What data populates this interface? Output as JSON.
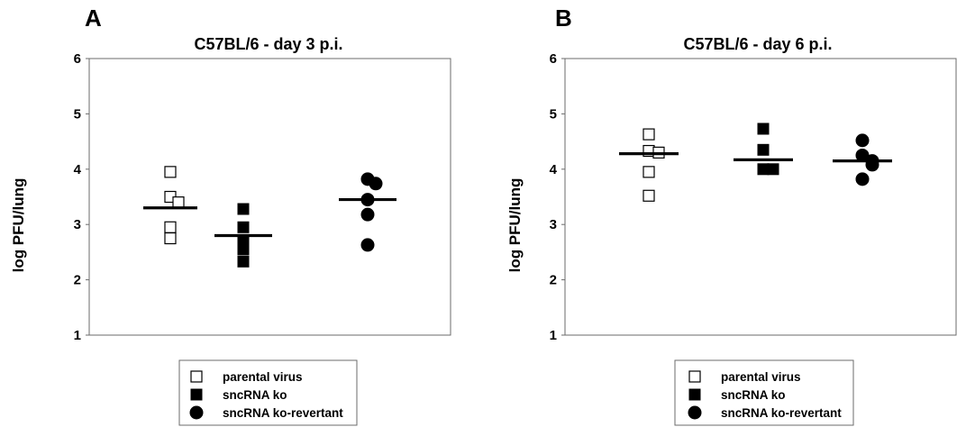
{
  "chart_data": [
    {
      "type": "scatter",
      "panel_label": "A",
      "title": "C57BL/6 - day 3 p.i.",
      "xlabel": "",
      "ylabel": "log PFU/lung",
      "ylim": [
        1,
        6
      ],
      "yticks": [
        "1",
        "2",
        "3",
        "4",
        "5",
        "6"
      ],
      "grid": false,
      "legend_placement": "bottom",
      "groups": [
        {
          "name": "parental virus",
          "marker": "open-square",
          "color": "#000000",
          "values": [
            3.95,
            3.5,
            3.4,
            2.95,
            2.75
          ],
          "mean": 3.3
        },
        {
          "name": "sncRNA ko",
          "marker": "filled-square",
          "color": "#000000",
          "values": [
            3.28,
            2.95,
            2.72,
            2.55,
            2.33
          ],
          "mean": 2.8
        },
        {
          "name": "sncRNA ko-revertant",
          "marker": "filled-circle",
          "color": "#000000",
          "values": [
            3.82,
            3.74,
            3.45,
            3.18,
            2.63
          ],
          "mean": 3.45
        }
      ]
    },
    {
      "type": "scatter",
      "panel_label": "B",
      "title": "C57BL/6 - day 6 p.i.",
      "xlabel": "",
      "ylabel": "log PFU/lung",
      "ylim": [
        1,
        6
      ],
      "yticks": [
        "1",
        "2",
        "3",
        "4",
        "5",
        "6"
      ],
      "grid": false,
      "legend_placement": "bottom",
      "groups": [
        {
          "name": "parental virus",
          "marker": "open-square",
          "color": "#000000",
          "values": [
            4.63,
            4.33,
            4.3,
            3.95,
            3.52
          ],
          "mean": 4.28
        },
        {
          "name": "sncRNA ko",
          "marker": "filled-square",
          "color": "#000000",
          "values": [
            4.73,
            4.35,
            4.0,
            4.0
          ],
          "mean": 4.17
        },
        {
          "name": "sncRNA ko-revertant",
          "marker": "filled-circle",
          "color": "#000000",
          "values": [
            4.52,
            4.25,
            4.15,
            4.08,
            3.82
          ],
          "mean": 4.15
        }
      ]
    }
  ]
}
